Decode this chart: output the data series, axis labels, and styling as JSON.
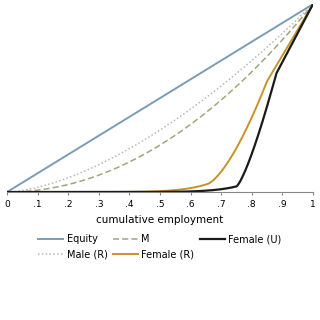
{
  "title": "",
  "xlabel": "cumulative employment",
  "ylabel": "",
  "xlim": [
    0,
    1
  ],
  "ylim": [
    0,
    1
  ],
  "xticks": [
    0,
    0.1,
    0.2,
    0.3,
    0.4,
    0.5,
    0.6,
    0.7,
    0.8,
    0.9,
    1.0
  ],
  "xticklabels": [
    "0",
    ".1",
    ".2",
    ".3",
    ".4",
    ".5",
    ".6",
    ".7",
    ".8",
    ".9",
    "1"
  ],
  "background_color": "#ffffff",
  "grid_color": "#e8e8e8",
  "lines": {
    "equity": {
      "label": "Equity",
      "color": "#7a9db5",
      "linestyle": "solid",
      "linewidth": 1.4
    },
    "male_r": {
      "label": "Male (R)",
      "color": "#b8b8b8",
      "linestyle": "dotted",
      "linewidth": 1.1
    },
    "male_u": {
      "label": "M",
      "color": "#9da87a",
      "linestyle": "dashed",
      "linewidth": 1.1
    },
    "female_r": {
      "label": "Female (R)",
      "color": "#c8922a",
      "linestyle": "solid",
      "linewidth": 1.4
    },
    "female_u": {
      "label": "Female (U)",
      "color": "#1a1a1a",
      "linestyle": "solid",
      "linewidth": 1.6
    }
  },
  "legend_fontsize": 7.0,
  "xlabel_fontsize": 7.5,
  "tick_fontsize": 6.5
}
